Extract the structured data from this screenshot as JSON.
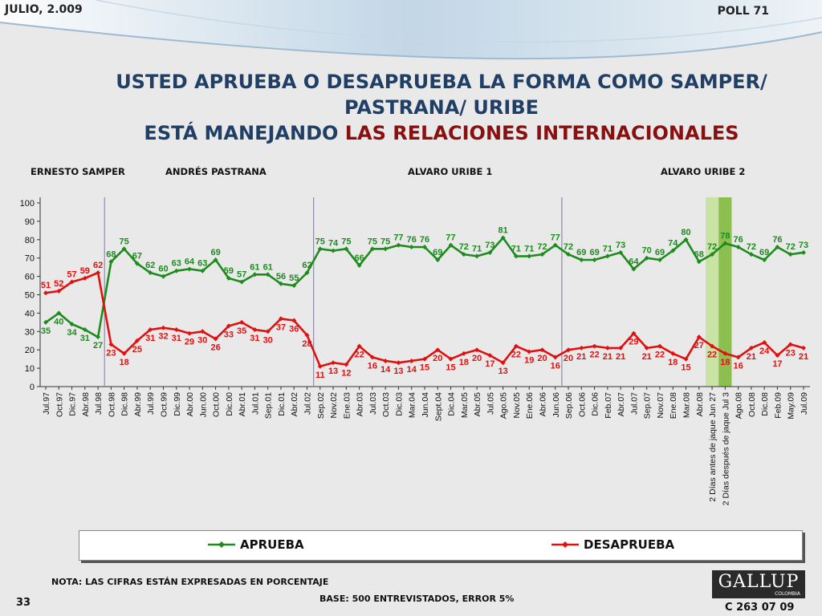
{
  "header": {
    "date": "JULIO, 2.009",
    "poll": "POLL 71"
  },
  "title": {
    "line1": "USTED APRUEBA O DESAPRUEBA LA FORMA COMO SAMPER/ PASTRANA/ URIBE",
    "line2_prefix": "ESTÁ MANEJANDO ",
    "line2_highlight": "LAS RELACIONES INTERNACIONALES"
  },
  "periods": [
    "ERNESTO SAMPER",
    "ANDRÉS  PASTRANA",
    "ALVARO URIBE 1",
    "ALVARO URIBE 2"
  ],
  "colors": {
    "aprueba": "#1e8b1e",
    "desaprueba": "#e01010",
    "title": "#1f3f66",
    "highlight_light": "#c9e3a4",
    "highlight_dark": "#8cbf50"
  },
  "chart_data": {
    "type": "line",
    "categories": [
      "Jul.97",
      "Oct.97",
      "Dic.97",
      "Abr.98",
      "Jul.98",
      "Oct.98",
      "Dic.98",
      "Abr.99",
      "Jul.99",
      "Oct.99",
      "Dic.99",
      "Abr.00",
      "Jun.00",
      "Oct.00",
      "Dic.00",
      "Abr.01",
      "Jul.01",
      "Sep.01",
      "Dic.01",
      "Abr.02",
      "Jul.02",
      "Sep.02",
      "Nov.02",
      "Ene.03",
      "Abr.03",
      "Jul.03",
      "Oct.03",
      "Dic.03",
      "Mar.04",
      "Jun.04",
      "Sept.04",
      "Dic.04",
      "Mar.05",
      "Abr.05",
      "Jul.05",
      "Ago.05",
      "Nov.05",
      "Ene.06",
      "Abr.06",
      "Jun.06",
      "Sep.06",
      "Oct.06",
      "Dic.06",
      "Feb.07",
      "Abr.07",
      "Jul.07",
      "Sep.07",
      "Nov.07",
      "Ene.08",
      "Mar.08",
      "Abr.08",
      "2 Días antes de jaque Jun 27",
      "2 Días después de jaque Jul 3",
      "Ago.08",
      "Oct.08",
      "Dic.08",
      "Feb.09",
      "May.09",
      "Jul.09"
    ],
    "series": [
      {
        "name": "APRUEBA",
        "values": [
          35,
          40,
          34,
          31,
          27,
          68,
          75,
          67,
          62,
          60,
          63,
          64,
          63,
          69,
          59,
          57,
          61,
          61,
          56,
          55,
          62,
          75,
          74,
          75,
          66,
          75,
          75,
          77,
          76,
          76,
          69,
          77,
          72,
          71,
          73,
          81,
          71,
          71,
          72,
          77,
          72,
          69,
          69,
          71,
          73,
          64,
          70,
          69,
          74,
          80,
          68,
          72,
          78,
          76,
          72,
          69,
          76,
          72,
          73
        ]
      },
      {
        "name": "DESAPRUEBA",
        "values": [
          51,
          52,
          57,
          59,
          62,
          23,
          18,
          25,
          31,
          32,
          31,
          29,
          30,
          26,
          33,
          35,
          31,
          30,
          37,
          36,
          28,
          11,
          13,
          12,
          22,
          16,
          14,
          13,
          14,
          15,
          20,
          15,
          18,
          20,
          17,
          13,
          22,
          19,
          20,
          16,
          20,
          21,
          22,
          21,
          21,
          29,
          21,
          22,
          18,
          15,
          27,
          22,
          18,
          16,
          21,
          24,
          17,
          23,
          21
        ]
      }
    ],
    "ylim": [
      0,
      100
    ],
    "yticks": [
      0,
      10,
      20,
      30,
      40,
      50,
      60,
      70,
      80,
      90,
      100
    ],
    "legend": {
      "position": "bottom",
      "aprueba": "APRUEBA",
      "desaprueba": "DESAPRUEBA"
    }
  },
  "footer": {
    "note": "NOTA: LAS CIFRAS ESTÁN EXPRESADAS EN PORCENTAJE",
    "base": "BASE: 500 ENTREVISTADOS, ERROR 5%",
    "page": "33",
    "logo": "GALLUP",
    "logo_sub": "COLOMBIA",
    "code": "C 263 07 09"
  }
}
